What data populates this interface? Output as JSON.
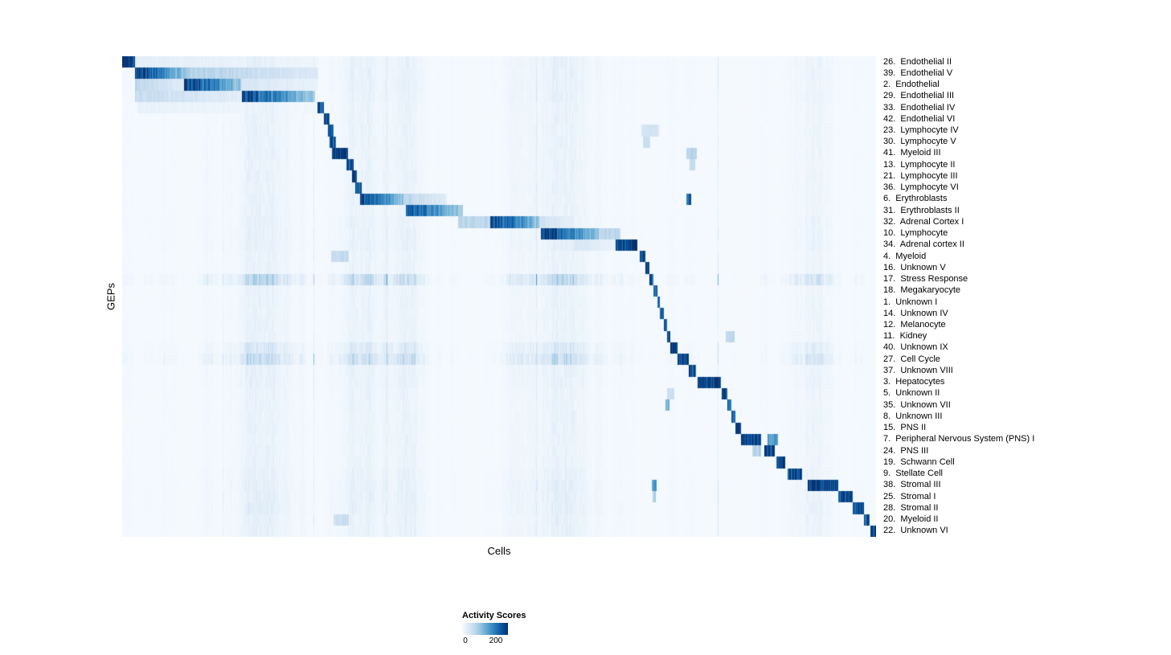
{
  "figure": {
    "xlabel": "Cells",
    "ylabel": "GEPs"
  },
  "chart_data": {
    "type": "heatmap",
    "title": "",
    "xlabel": "Cells",
    "ylabel": "GEPs",
    "colormap": "Blues",
    "grid": false,
    "legend_position": "bottom",
    "colorbar": {
      "title": "Activity Scores",
      "min": 0,
      "max": 250,
      "ticks": [
        0,
        200
      ],
      "tick_labels": [
        "0",
        "200"
      ]
    },
    "value_max": 250,
    "noise_seed": 42,
    "n_rows": 42,
    "rows": [
      {
        "label": "26.  Endothelial II",
        "streaks": 0.15,
        "blocks": [
          {
            "start": 0.0,
            "end": 0.016,
            "score": 240
          },
          {
            "start": 0.016,
            "end": 0.26,
            "score": 25
          }
        ]
      },
      {
        "label": "39.  Endothelial V",
        "streaks": 0.15,
        "blocks": [
          {
            "start": 0.017,
            "end": 0.085,
            "score": 240
          },
          {
            "start": 0.085,
            "end": 0.26,
            "score": 80
          }
        ]
      },
      {
        "label": "2.  Endothelial",
        "streaks": 0.15,
        "blocks": [
          {
            "start": 0.017,
            "end": 0.082,
            "score": 70
          },
          {
            "start": 0.082,
            "end": 0.157,
            "score": 240
          },
          {
            "start": 0.157,
            "end": 0.26,
            "score": 40
          }
        ]
      },
      {
        "label": "29.  Endothelial III",
        "streaks": 0.15,
        "blocks": [
          {
            "start": 0.017,
            "end": 0.158,
            "score": 60
          },
          {
            "start": 0.158,
            "end": 0.255,
            "score": 230
          }
        ]
      },
      {
        "label": "33.  Endothelial IV",
        "streaks": 0.12,
        "blocks": [
          {
            "start": 0.02,
            "end": 0.258,
            "score": 18
          },
          {
            "start": 0.258,
            "end": 0.267,
            "score": 225
          }
        ]
      },
      {
        "label": "42.  Endothelial VI",
        "streaks": 0.12,
        "blocks": [
          {
            "start": 0.267,
            "end": 0.275,
            "score": 225
          }
        ]
      },
      {
        "label": "23.  Lymphocyte IV",
        "streaks": 0.12,
        "blocks": [
          {
            "start": 0.272,
            "end": 0.28,
            "score": 215
          },
          {
            "start": 0.688,
            "end": 0.712,
            "score": 45
          }
        ]
      },
      {
        "label": "30.  Lymphocyte V",
        "streaks": 0.12,
        "blocks": [
          {
            "start": 0.275,
            "end": 0.283,
            "score": 225
          },
          {
            "start": 0.69,
            "end": 0.7,
            "score": 55
          }
        ]
      },
      {
        "label": "41.  Myeloid III",
        "streaks": 0.12,
        "blocks": [
          {
            "start": 0.278,
            "end": 0.299,
            "score": 240
          },
          {
            "start": 0.748,
            "end": 0.762,
            "score": 70
          }
        ]
      },
      {
        "label": "13.  Lymphocyte II",
        "streaks": 0.12,
        "blocks": [
          {
            "start": 0.297,
            "end": 0.306,
            "score": 230
          },
          {
            "start": 0.752,
            "end": 0.76,
            "score": 65
          }
        ]
      },
      {
        "label": "21.  Lymphocyte III",
        "streaks": 0.12,
        "blocks": [
          {
            "start": 0.304,
            "end": 0.311,
            "score": 225
          }
        ]
      },
      {
        "label": "36.  Lymphocyte VI",
        "streaks": 0.12,
        "blocks": [
          {
            "start": 0.309,
            "end": 0.317,
            "score": 215
          }
        ]
      },
      {
        "label": "6.  Erythroblasts",
        "streaks": 0.12,
        "blocks": [
          {
            "start": 0.315,
            "end": 0.373,
            "score": 240
          },
          {
            "start": 0.373,
            "end": 0.43,
            "score": 70
          },
          {
            "start": 0.748,
            "end": 0.754,
            "score": 200
          }
        ]
      },
      {
        "label": "31.  Erythroblasts II",
        "streaks": 0.12,
        "blocks": [
          {
            "start": 0.376,
            "end": 0.452,
            "score": 220
          }
        ]
      },
      {
        "label": "32.  Adrenal Cortex I",
        "streaks": 0.15,
        "blocks": [
          {
            "start": 0.445,
            "end": 0.488,
            "score": 70
          },
          {
            "start": 0.488,
            "end": 0.553,
            "score": 240
          },
          {
            "start": 0.553,
            "end": 0.6,
            "score": 50
          }
        ]
      },
      {
        "label": "10.  Lymphocyte",
        "streaks": 0.15,
        "blocks": [
          {
            "start": 0.555,
            "end": 0.632,
            "score": 245
          },
          {
            "start": 0.632,
            "end": 0.66,
            "score": 70
          }
        ]
      },
      {
        "label": "34.  Adrenal cortex II",
        "streaks": 0.15,
        "blocks": [
          {
            "start": 0.6,
            "end": 0.654,
            "score": 40
          },
          {
            "start": 0.654,
            "end": 0.683,
            "score": 240
          }
        ]
      },
      {
        "label": "4.  Myeloid",
        "streaks": 0.12,
        "blocks": [
          {
            "start": 0.277,
            "end": 0.3,
            "score": 60
          },
          {
            "start": 0.686,
            "end": 0.693,
            "score": 225
          }
        ]
      },
      {
        "label": "16.  Unknown V",
        "streaks": 0.12,
        "blocks": [
          {
            "start": 0.693,
            "end": 0.699,
            "score": 225
          }
        ]
      },
      {
        "label": "17.  Stress Response",
        "streaks": 0.55,
        "blocks": [
          {
            "start": 0.699,
            "end": 0.704,
            "score": 225
          }
        ]
      },
      {
        "label": "18.  Megakaryocyte",
        "streaks": 0.12,
        "blocks": [
          {
            "start": 0.704,
            "end": 0.709,
            "score": 220
          }
        ]
      },
      {
        "label": "1.  Unknown I",
        "streaks": 0.12,
        "blocks": [
          {
            "start": 0.709,
            "end": 0.713,
            "score": 210
          }
        ]
      },
      {
        "label": "14.  Unknown IV",
        "streaks": 0.12,
        "blocks": [
          {
            "start": 0.713,
            "end": 0.718,
            "score": 215
          }
        ]
      },
      {
        "label": "12.  Melanocyte",
        "streaks": 0.12,
        "blocks": [
          {
            "start": 0.718,
            "end": 0.722,
            "score": 215
          }
        ]
      },
      {
        "label": "11.  Kidney",
        "streaks": 0.12,
        "blocks": [
          {
            "start": 0.722,
            "end": 0.727,
            "score": 215
          },
          {
            "start": 0.8,
            "end": 0.812,
            "score": 70
          }
        ]
      },
      {
        "label": "40.  Unknown IX",
        "streaks": 0.3,
        "blocks": [
          {
            "start": 0.727,
            "end": 0.736,
            "score": 225
          }
        ]
      },
      {
        "label": "27.  Cell Cycle",
        "streaks": 0.5,
        "blocks": [
          {
            "start": 0.736,
            "end": 0.751,
            "score": 230
          }
        ]
      },
      {
        "label": "37.  Unknown VIII",
        "streaks": 0.15,
        "blocks": [
          {
            "start": 0.751,
            "end": 0.761,
            "score": 225
          }
        ]
      },
      {
        "label": "3.  Hepatocytes",
        "streaks": 0.15,
        "blocks": [
          {
            "start": 0.763,
            "end": 0.794,
            "score": 240
          }
        ]
      },
      {
        "label": "5.  Unknown II",
        "streaks": 0.12,
        "blocks": [
          {
            "start": 0.722,
            "end": 0.732,
            "score": 60
          },
          {
            "start": 0.795,
            "end": 0.802,
            "score": 225
          }
        ]
      },
      {
        "label": "35.  Unknown VII",
        "streaks": 0.12,
        "blocks": [
          {
            "start": 0.72,
            "end": 0.726,
            "score": 120
          },
          {
            "start": 0.802,
            "end": 0.808,
            "score": 220
          }
        ]
      },
      {
        "label": "8.  Unknown III",
        "streaks": 0.12,
        "blocks": [
          {
            "start": 0.808,
            "end": 0.813,
            "score": 210
          }
        ]
      },
      {
        "label": "15.  PNS II",
        "streaks": 0.12,
        "blocks": [
          {
            "start": 0.813,
            "end": 0.82,
            "score": 220
          }
        ]
      },
      {
        "label": "7.  Peripheral Nervous System (PNS) I",
        "streaks": 0.12,
        "blocks": [
          {
            "start": 0.82,
            "end": 0.847,
            "score": 245
          },
          {
            "start": 0.856,
            "end": 0.869,
            "score": 150
          }
        ]
      },
      {
        "label": "24.  PNS III",
        "streaks": 0.12,
        "blocks": [
          {
            "start": 0.835,
            "end": 0.847,
            "score": 80
          },
          {
            "start": 0.851,
            "end": 0.865,
            "score": 235
          }
        ]
      },
      {
        "label": "19.  Schwann Cell",
        "streaks": 0.12,
        "blocks": [
          {
            "start": 0.867,
            "end": 0.879,
            "score": 235
          }
        ]
      },
      {
        "label": "9.  Stellate Cell",
        "streaks": 0.15,
        "blocks": [
          {
            "start": 0.882,
            "end": 0.901,
            "score": 235
          }
        ]
      },
      {
        "label": "38.  Stromal III",
        "streaks": 0.18,
        "blocks": [
          {
            "start": 0.702,
            "end": 0.708,
            "score": 150
          },
          {
            "start": 0.909,
            "end": 0.949,
            "score": 240
          }
        ]
      },
      {
        "label": "25.  Stromal I",
        "streaks": 0.18,
        "blocks": [
          {
            "start": 0.703,
            "end": 0.707,
            "score": 90
          },
          {
            "start": 0.949,
            "end": 0.969,
            "score": 240
          }
        ]
      },
      {
        "label": "28.  Stromal II",
        "streaks": 0.18,
        "blocks": [
          {
            "start": 0.969,
            "end": 0.983,
            "score": 235
          }
        ]
      },
      {
        "label": "20.  Myeloid II",
        "streaks": 0.15,
        "blocks": [
          {
            "start": 0.28,
            "end": 0.3,
            "score": 55
          },
          {
            "start": 0.983,
            "end": 0.991,
            "score": 225
          }
        ]
      },
      {
        "label": "22.  Unknown VI",
        "streaks": 0.15,
        "blocks": [
          {
            "start": 0.992,
            "end": 1.0,
            "score": 235
          }
        ]
      }
    ]
  }
}
